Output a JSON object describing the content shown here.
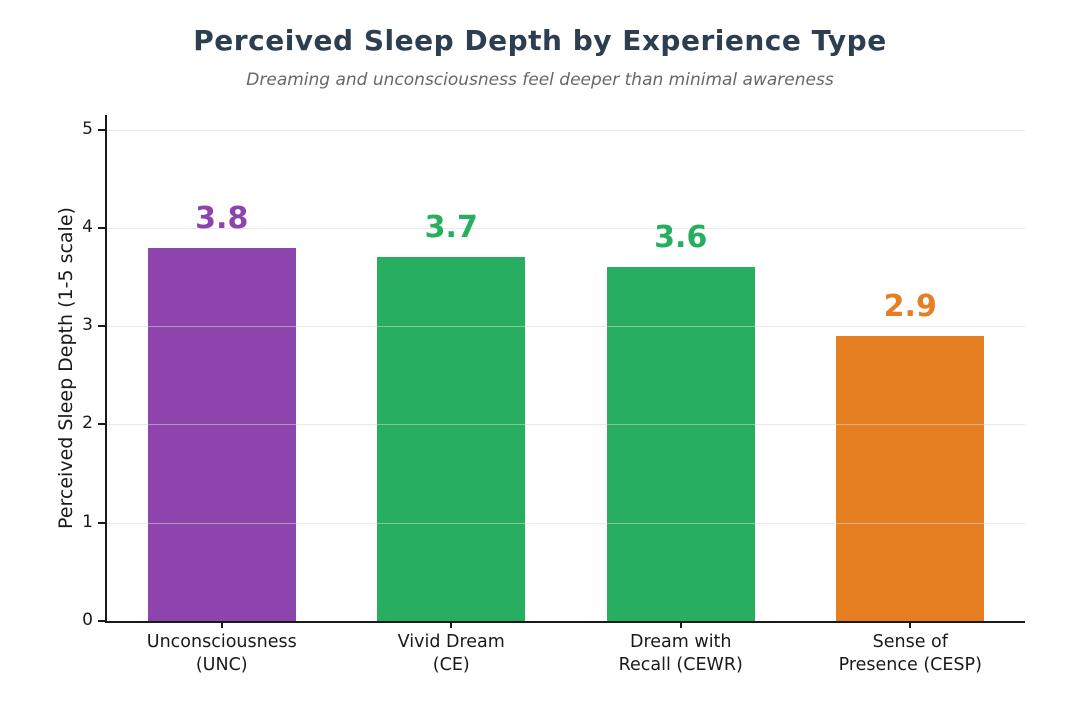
{
  "chart_data": {
    "type": "bar",
    "title": "Perceived Sleep Depth by Experience Type",
    "subtitle": "Dreaming and unconsciousness feel deeper than minimal awareness",
    "categories": [
      "Unconsciousness\n(UNC)",
      "Vivid Dream\n(CE)",
      "Dream with\nRecall (CEWR)",
      "Sense of\nPresence (CESP)"
    ],
    "values": [
      3.8,
      3.7,
      3.6,
      2.9
    ],
    "value_labels": [
      "3.8",
      "3.7",
      "3.6",
      "2.9"
    ],
    "bar_colors": [
      "#8e44ad",
      "#27ae60",
      "#27ae60",
      "#e67e22"
    ],
    "label_colors": [
      "#8e44ad",
      "#27ae60",
      "#27ae60",
      "#e67e22"
    ],
    "xlabel": "",
    "ylabel": "Perceived Sleep Depth (1-5 scale)",
    "yticks": [
      0,
      1,
      2,
      3,
      4,
      5
    ],
    "ylim": [
      0,
      5.15
    ],
    "grid": "horizontal",
    "legend_position": "none"
  },
  "style": {
    "title_color": "#2d3e50",
    "subtitle_color": "#686868",
    "axis_color": "#1a1a1a",
    "grid_color": "#d7d7d7",
    "background": "#ffffff"
  }
}
